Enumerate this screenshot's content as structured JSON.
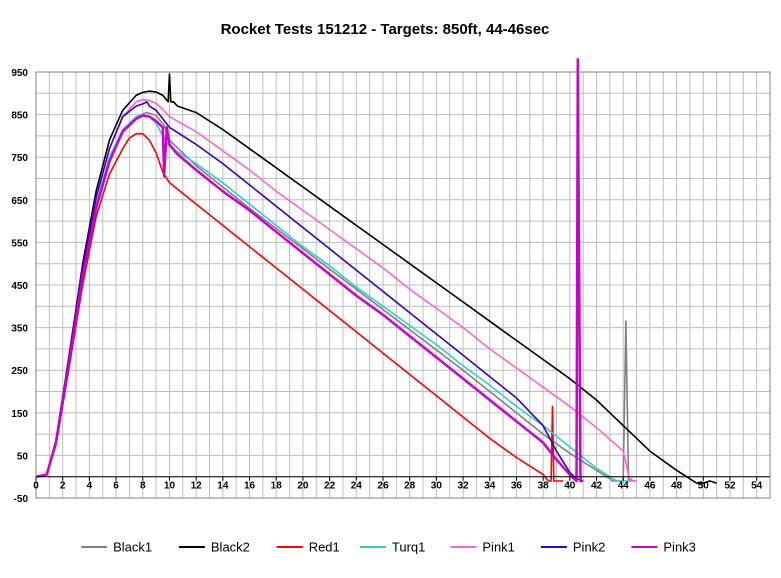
{
  "chart_data": {
    "type": "line",
    "title": "Rocket Tests 151212 - Targets: 850ft, 44-46sec",
    "xlabel": "",
    "ylabel": "",
    "xlim": [
      0,
      55
    ],
    "ylim": [
      -50,
      950
    ],
    "x_ticks": [
      0,
      2,
      4,
      6,
      8,
      10,
      12,
      14,
      16,
      18,
      20,
      22,
      24,
      26,
      28,
      30,
      32,
      34,
      36,
      38,
      40,
      42,
      44,
      46,
      48,
      50,
      52,
      54
    ],
    "y_ticks": [
      -50,
      50,
      150,
      250,
      350,
      450,
      550,
      650,
      750,
      850,
      950
    ],
    "grid": true,
    "legend_position": "bottom",
    "series": [
      {
        "name": "Black1",
        "color": "#808080",
        "x": [
          0,
          0.8,
          1.5,
          2.5,
          3.5,
          4.5,
          5.5,
          6.5,
          7.5,
          8.3,
          9,
          9.6,
          10,
          12,
          16,
          20,
          24,
          28,
          32,
          36,
          38,
          40,
          42,
          43,
          43.2,
          43.5,
          44,
          44.2,
          44.4,
          45
        ],
        "y": [
          0,
          5,
          80,
          270,
          470,
          630,
          740,
          810,
          845,
          855,
          848,
          825,
          790,
          730,
          630,
          535,
          440,
          345,
          250,
          150,
          100,
          55,
          15,
          -5,
          -10,
          -10,
          -10,
          365,
          -10,
          -10
        ]
      },
      {
        "name": "Black2",
        "color": "#000000",
        "x": [
          0,
          0.8,
          1.5,
          2.5,
          3.5,
          4.5,
          5.5,
          6.5,
          7.5,
          8,
          8.5,
          9,
          9.5,
          9.9,
          10,
          10.1,
          10.3,
          10.6,
          12,
          14,
          16,
          18,
          20,
          22,
          24,
          26,
          28,
          30,
          32,
          34,
          36,
          38,
          40,
          42,
          44,
          46,
          48,
          49,
          49.5,
          50,
          50.5,
          51
        ],
        "y": [
          0,
          5,
          85,
          290,
          500,
          670,
          790,
          860,
          895,
          902,
          905,
          903,
          895,
          880,
          945,
          880,
          880,
          870,
          855,
          815,
          770,
          725,
          680,
          635,
          590,
          545,
          500,
          455,
          410,
          365,
          320,
          275,
          230,
          180,
          120,
          60,
          15,
          -5,
          -15,
          -15,
          -10,
          -15
        ]
      },
      {
        "name": "Red1",
        "color": "#ff0000",
        "x": [
          0,
          0.8,
          1.5,
          2.5,
          3.5,
          4.5,
          5.5,
          6.5,
          7,
          7.5,
          8,
          8.5,
          9,
          9.5,
          10,
          12,
          14,
          16,
          18,
          20,
          22,
          24,
          26,
          28,
          30,
          32,
          34,
          36,
          38,
          38.4,
          38.6,
          38.7,
          38.8,
          39,
          39.5
        ],
        "y": [
          0,
          5,
          75,
          260,
          450,
          610,
          710,
          770,
          795,
          805,
          805,
          790,
          760,
          715,
          690,
          640,
          590,
          540,
          490,
          440,
          390,
          340,
          290,
          240,
          190,
          140,
          90,
          45,
          5,
          -10,
          -10,
          165,
          -10,
          -10,
          -10
        ]
      },
      {
        "name": "Turq1",
        "color": "#33cccc",
        "x": [
          0,
          0.8,
          1.5,
          2.5,
          3.5,
          4.5,
          5.5,
          6.5,
          7.5,
          8,
          8.5,
          9,
          9.5,
          10,
          12,
          14,
          16,
          18,
          20,
          22,
          24,
          26,
          28,
          30,
          32,
          34,
          36,
          38,
          40,
          42,
          43,
          43.5,
          44,
          44.5
        ],
        "y": [
          0,
          5,
          80,
          275,
          480,
          640,
          750,
          815,
          845,
          850,
          845,
          830,
          800,
          775,
          735,
          690,
          640,
          590,
          540,
          495,
          445,
          400,
          355,
          310,
          260,
          215,
          165,
          120,
          70,
          20,
          0,
          -10,
          -10,
          -10
        ]
      },
      {
        "name": "Pink1",
        "color": "#ff66cc",
        "x": [
          0,
          0.8,
          1.5,
          2.5,
          3.5,
          4.5,
          5.5,
          6.5,
          7.5,
          8,
          8.5,
          9,
          9.5,
          10,
          12,
          14,
          16,
          18,
          20,
          22,
          24,
          26,
          28,
          30,
          32,
          34,
          36,
          38,
          40,
          42,
          44,
          44.5,
          44.6,
          44.7,
          45
        ],
        "y": [
          0,
          5,
          85,
          285,
          490,
          655,
          770,
          845,
          880,
          885,
          883,
          876,
          862,
          845,
          810,
          765,
          720,
          670,
          625,
          580,
          535,
          490,
          440,
          395,
          350,
          300,
          255,
          210,
          165,
          115,
          60,
          -10,
          -5,
          -10,
          -10
        ]
      },
      {
        "name": "Pink2",
        "color": "#3300cc",
        "x": [
          0,
          0.8,
          1.5,
          2.5,
          3.5,
          4.5,
          5.5,
          6.5,
          7.5,
          8,
          8.3,
          8.5,
          9,
          9.5,
          10,
          12,
          14,
          16,
          18,
          20,
          22,
          24,
          26,
          28,
          30,
          32,
          34,
          36,
          38,
          39,
          40,
          40.5,
          41
        ],
        "y": [
          0,
          5,
          85,
          285,
          490,
          655,
          770,
          845,
          870,
          875,
          880,
          870,
          860,
          840,
          820,
          780,
          735,
          685,
          635,
          585,
          535,
          485,
          435,
          385,
          335,
          285,
          235,
          185,
          120,
          60,
          10,
          -5,
          -10
        ]
      },
      {
        "name": "Pink3",
        "color": "#cc00cc",
        "x": [
          0,
          0.8,
          1.5,
          2.5,
          3.5,
          4.5,
          5.5,
          6.5,
          7.5,
          8,
          8.5,
          9,
          9.5,
          9.6,
          9.8,
          10,
          10.5,
          12,
          14,
          16,
          18,
          20,
          22,
          24,
          26,
          28,
          30,
          32,
          34,
          36,
          38,
          39,
          40,
          40.5,
          40.6,
          40.8,
          41
        ],
        "y": [
          0,
          5,
          80,
          270,
          470,
          630,
          740,
          810,
          840,
          848,
          845,
          835,
          820,
          705,
          820,
          780,
          760,
          720,
          670,
          625,
          575,
          525,
          475,
          425,
          380,
          330,
          280,
          230,
          180,
          130,
          80,
          40,
          5,
          -10,
          980,
          -10,
          -10
        ]
      }
    ]
  }
}
